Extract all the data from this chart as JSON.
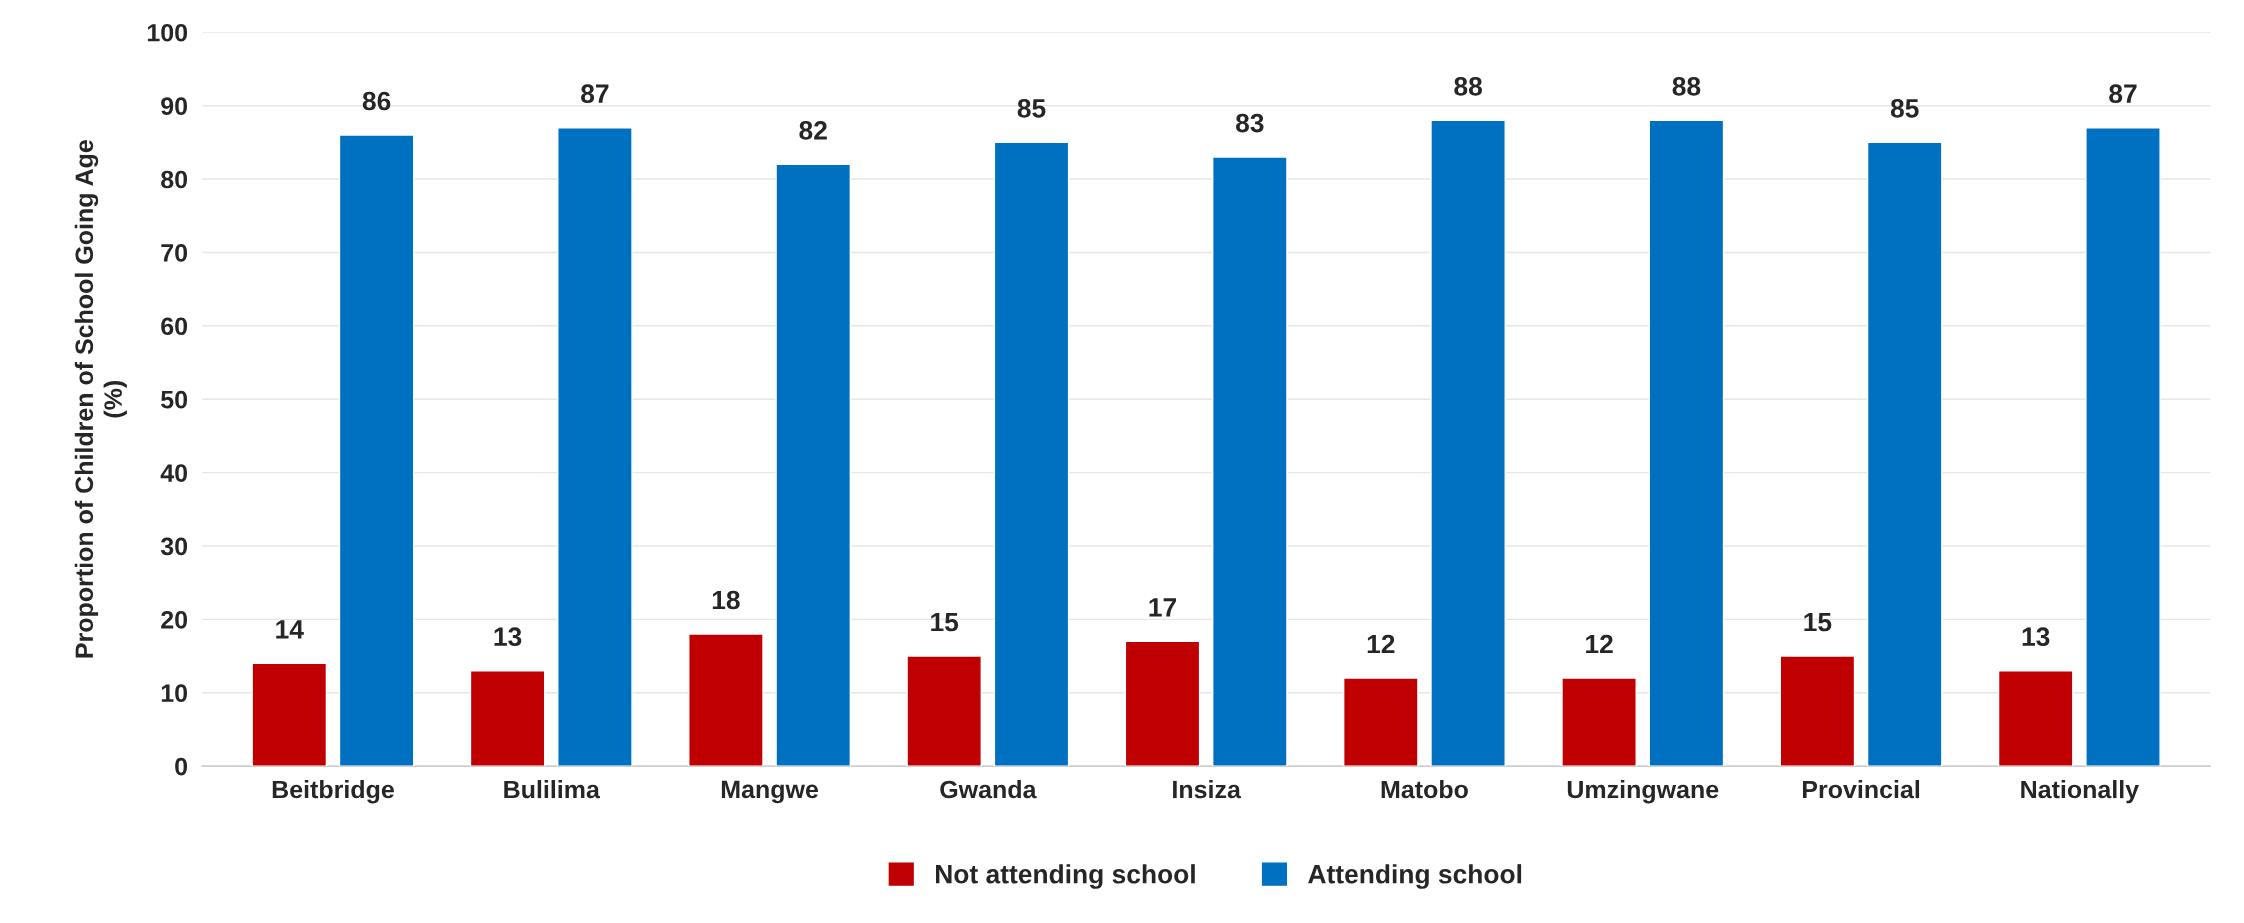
{
  "chart_data": {
    "type": "bar",
    "ylabel": "Proportion of Children of School Going Age\n(%)",
    "categories": [
      "Beitbridge",
      "Bulilima",
      "Mangwe",
      "Gwanda",
      "Insiza",
      "Matobo",
      "Umzingwane",
      "Provincial",
      "Nationally"
    ],
    "series": [
      {
        "name": "Not attending school",
        "color": "#c00000",
        "values": [
          14,
          13,
          18,
          15,
          17,
          12,
          12,
          15,
          13
        ]
      },
      {
        "name": "Attending school",
        "color": "#0070c0",
        "values": [
          86,
          87,
          82,
          85,
          83,
          88,
          88,
          85,
          87
        ]
      }
    ],
    "ylim": [
      0,
      100
    ],
    "yticks": [
      0,
      10,
      20,
      30,
      40,
      50,
      60,
      70,
      80,
      90,
      100
    ],
    "grid": "y",
    "legend": "bottom",
    "data_labels": true
  }
}
